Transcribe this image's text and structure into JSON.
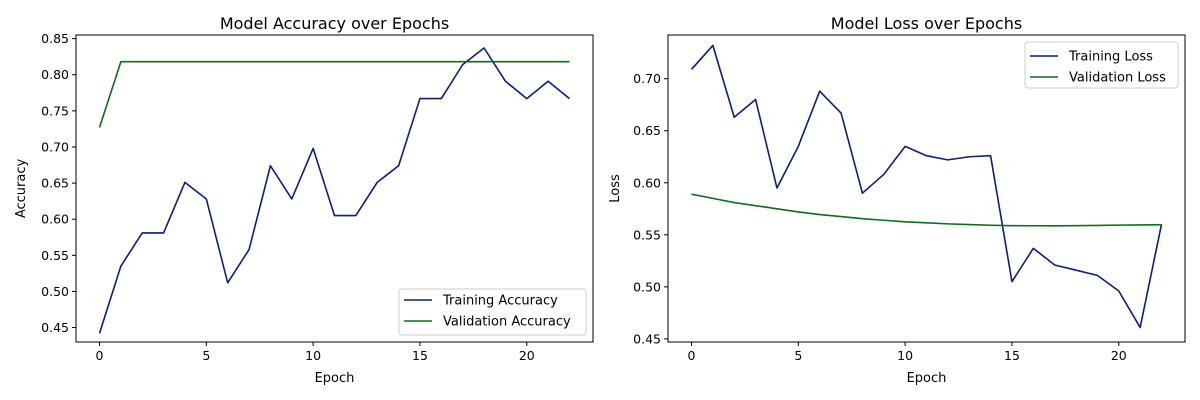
{
  "chart_data": [
    {
      "type": "line",
      "title": "Model Accuracy over Epochs",
      "xlabel": "Epoch",
      "ylabel": "Accuracy",
      "xlim": [
        -1.1,
        23.1
      ],
      "ylim": [
        0.43,
        0.855
      ],
      "xticks": [
        0,
        5,
        10,
        15,
        20
      ],
      "yticks": [
        0.45,
        0.5,
        0.55,
        0.6,
        0.65,
        0.7,
        0.75,
        0.8,
        0.85
      ],
      "ytick_labels": [
        "0.45",
        "0.50",
        "0.55",
        "0.60",
        "0.65",
        "0.70",
        "0.75",
        "0.80",
        "0.85"
      ],
      "grid": false,
      "legend_position": "lower-right",
      "x": [
        0,
        1,
        2,
        3,
        4,
        5,
        6,
        7,
        8,
        9,
        10,
        11,
        12,
        13,
        14,
        15,
        16,
        17,
        18,
        19,
        20,
        21,
        22
      ],
      "series": [
        {
          "name": "Training Accuracy",
          "color": "#0a1f7a",
          "values": [
            0.442,
            0.535,
            0.581,
            0.581,
            0.651,
            0.628,
            0.512,
            0.558,
            0.674,
            0.628,
            0.698,
            0.605,
            0.605,
            0.651,
            0.674,
            0.767,
            0.767,
            0.814,
            0.837,
            0.791,
            0.767,
            0.791,
            0.767
          ]
        },
        {
          "name": "Validation Accuracy",
          "color": "#0b6e1e",
          "values": [
            0.727,
            0.818,
            0.818,
            0.818,
            0.818,
            0.818,
            0.818,
            0.818,
            0.818,
            0.818,
            0.818,
            0.818,
            0.818,
            0.818,
            0.818,
            0.818,
            0.818,
            0.818,
            0.818,
            0.818,
            0.818,
            0.818,
            0.818
          ]
        }
      ]
    },
    {
      "type": "line",
      "title": "Model Loss over Epochs",
      "xlabel": "Epoch",
      "ylabel": "Loss",
      "xlim": [
        -1.1,
        23.1
      ],
      "ylim": [
        0.447,
        0.742
      ],
      "xticks": [
        0,
        5,
        10,
        15,
        20
      ],
      "yticks": [
        0.45,
        0.5,
        0.55,
        0.6,
        0.65,
        0.7
      ],
      "ytick_labels": [
        "0.45",
        "0.50",
        "0.55",
        "0.60",
        "0.65",
        "0.70"
      ],
      "grid": false,
      "legend_position": "top-right",
      "x": [
        0,
        1,
        2,
        3,
        4,
        5,
        6,
        7,
        8,
        9,
        10,
        11,
        12,
        13,
        14,
        15,
        16,
        17,
        18,
        19,
        20,
        21,
        22
      ],
      "series": [
        {
          "name": "Training Loss",
          "color": "#0a1f7a",
          "values": [
            0.709,
            0.732,
            0.663,
            0.68,
            0.595,
            0.635,
            0.688,
            0.667,
            0.59,
            0.608,
            0.635,
            0.626,
            0.622,
            0.625,
            0.626,
            0.505,
            0.537,
            0.521,
            0.516,
            0.511,
            0.496,
            0.461,
            0.56
          ]
        },
        {
          "name": "Validation Loss",
          "color": "#0b6e1e",
          "values": [
            0.589,
            0.585,
            0.581,
            0.578,
            0.575,
            0.572,
            0.5695,
            0.5675,
            0.5655,
            0.564,
            0.5625,
            0.5615,
            0.5605,
            0.5598,
            0.5592,
            0.5588,
            0.5587,
            0.5586,
            0.5588,
            0.559,
            0.5593,
            0.5595,
            0.5597
          ]
        }
      ]
    }
  ]
}
